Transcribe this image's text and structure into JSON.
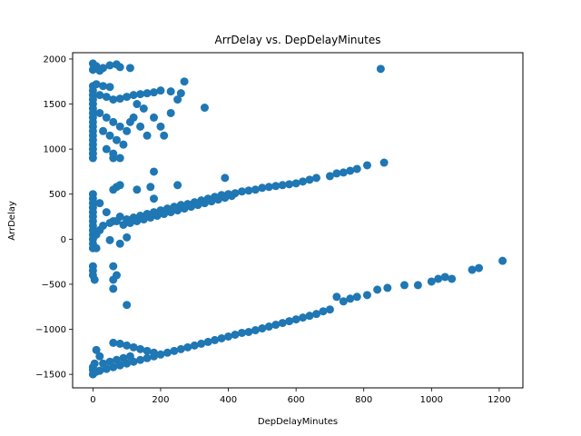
{
  "chart_data": {
    "type": "scatter",
    "title": "ArrDelay vs. DepDelayMinutes",
    "xlabel": "DepDelayMinutes",
    "ylabel": "ArrDelay",
    "xlim": [
      -60,
      1270
    ],
    "ylim": [
      -1650,
      2070
    ],
    "xticks": [
      0,
      200,
      400,
      600,
      800,
      1000,
      1200
    ],
    "yticks": [
      -1500,
      -1000,
      -500,
      0,
      500,
      1000,
      1500,
      2000
    ],
    "xtick_labels": [
      "0",
      "200",
      "400",
      "600",
      "800",
      "1000",
      "1200"
    ],
    "ytick_labels": [
      "−1500",
      "−1000",
      "−500",
      "0",
      "500",
      "1000",
      "1500",
      "2000"
    ],
    "grid": false,
    "marker_color": "#1f77b4",
    "series": [
      {
        "points": [
          [
            0,
            1950
          ],
          [
            10,
            1920
          ],
          [
            30,
            1900
          ],
          [
            50,
            1930
          ],
          [
            70,
            1940
          ],
          [
            80,
            1910
          ],
          [
            110,
            1900
          ],
          [
            0,
            1880
          ],
          [
            20,
            1870
          ],
          [
            0,
            1700
          ],
          [
            10,
            1720
          ],
          [
            30,
            1700
          ],
          [
            50,
            1690
          ],
          [
            0,
            1650
          ],
          [
            0,
            1600
          ],
          [
            0,
            1550
          ],
          [
            0,
            1500
          ],
          [
            0,
            1450
          ],
          [
            0,
            1400
          ],
          [
            0,
            1350
          ],
          [
            0,
            1300
          ],
          [
            0,
            1250
          ],
          [
            0,
            1200
          ],
          [
            0,
            1150
          ],
          [
            0,
            1100
          ],
          [
            0,
            1050
          ],
          [
            0,
            1000
          ],
          [
            0,
            950
          ],
          [
            0,
            900
          ],
          [
            20,
            1600
          ],
          [
            40,
            1580
          ],
          [
            60,
            1550
          ],
          [
            80,
            1560
          ],
          [
            100,
            1580
          ],
          [
            120,
            1600
          ],
          [
            140,
            1610
          ],
          [
            160,
            1620
          ],
          [
            180,
            1630
          ],
          [
            200,
            1650
          ],
          [
            230,
            1640
          ],
          [
            260,
            1620
          ],
          [
            270,
            1750
          ],
          [
            20,
            1400
          ],
          [
            40,
            1350
          ],
          [
            60,
            1300
          ],
          [
            80,
            1250
          ],
          [
            30,
            1200
          ],
          [
            50,
            1150
          ],
          [
            70,
            1100
          ],
          [
            90,
            1050
          ],
          [
            40,
            1000
          ],
          [
            60,
            950
          ],
          [
            80,
            900
          ],
          [
            130,
            1500
          ],
          [
            150,
            1450
          ],
          [
            120,
            1350
          ],
          [
            140,
            1250
          ],
          [
            160,
            1150
          ],
          [
            180,
            1350
          ],
          [
            200,
            1250
          ],
          [
            230,
            1400
          ],
          [
            250,
            1550
          ],
          [
            210,
            1150
          ],
          [
            330,
            1460
          ],
          [
            850,
            1890
          ],
          [
            60,
            900
          ],
          [
            100,
            1200
          ],
          [
            110,
            1300
          ],
          [
            0,
            500
          ],
          [
            0,
            450
          ],
          [
            0,
            400
          ],
          [
            0,
            350
          ],
          [
            0,
            300
          ],
          [
            0,
            250
          ],
          [
            0,
            200
          ],
          [
            0,
            150
          ],
          [
            0,
            100
          ],
          [
            0,
            50
          ],
          [
            0,
            0
          ],
          [
            0,
            -50
          ],
          [
            0,
            -100
          ],
          [
            0,
            -300
          ],
          [
            0,
            -350
          ],
          [
            0,
            -400
          ],
          [
            5,
            -450
          ],
          [
            20,
            400
          ],
          [
            40,
            300
          ],
          [
            60,
            200
          ],
          [
            80,
            250
          ],
          [
            100,
            220
          ],
          [
            120,
            240
          ],
          [
            140,
            260
          ],
          [
            160,
            280
          ],
          [
            180,
            300
          ],
          [
            200,
            320
          ],
          [
            220,
            340
          ],
          [
            240,
            360
          ],
          [
            260,
            380
          ],
          [
            280,
            390
          ],
          [
            300,
            410
          ],
          [
            320,
            430
          ],
          [
            340,
            450
          ],
          [
            360,
            470
          ],
          [
            380,
            490
          ],
          [
            400,
            500
          ],
          [
            420,
            510
          ],
          [
            440,
            530
          ],
          [
            460,
            540
          ],
          [
            480,
            550
          ],
          [
            500,
            570
          ],
          [
            520,
            580
          ],
          [
            540,
            590
          ],
          [
            560,
            600
          ],
          [
            580,
            610
          ],
          [
            600,
            620
          ],
          [
            620,
            640
          ],
          [
            640,
            660
          ],
          [
            660,
            680
          ],
          [
            700,
            700
          ],
          [
            720,
            730
          ],
          [
            740,
            740
          ],
          [
            760,
            760
          ],
          [
            780,
            780
          ],
          [
            810,
            820
          ],
          [
            860,
            850
          ],
          [
            30,
            150
          ],
          [
            50,
            180
          ],
          [
            70,
            200
          ],
          [
            90,
            160
          ],
          [
            110,
            180
          ],
          [
            130,
            200
          ],
          [
            150,
            220
          ],
          [
            170,
            240
          ],
          [
            190,
            260
          ],
          [
            210,
            280
          ],
          [
            230,
            300
          ],
          [
            250,
            320
          ],
          [
            270,
            340
          ],
          [
            290,
            360
          ],
          [
            310,
            380
          ],
          [
            330,
            400
          ],
          [
            350,
            420
          ],
          [
            370,
            440
          ],
          [
            390,
            460
          ],
          [
            410,
            480
          ],
          [
            60,
            550
          ],
          [
            70,
            580
          ],
          [
            80,
            600
          ],
          [
            130,
            550
          ],
          [
            170,
            580
          ],
          [
            180,
            750
          ],
          [
            250,
            600
          ],
          [
            180,
            450
          ],
          [
            390,
            680
          ],
          [
            100,
            20
          ],
          [
            50,
            -10
          ],
          [
            80,
            -50
          ],
          [
            60,
            -300
          ],
          [
            70,
            -400
          ],
          [
            60,
            -450
          ],
          [
            60,
            -550
          ],
          [
            100,
            -730
          ],
          [
            10,
            -100
          ],
          [
            20,
            100
          ],
          [
            10,
            50
          ],
          [
            0,
            -1500
          ],
          [
            0,
            -1450
          ],
          [
            0,
            -1420
          ],
          [
            5,
            -1380
          ],
          [
            10,
            -1470
          ],
          [
            20,
            -1460
          ],
          [
            40,
            -1440
          ],
          [
            60,
            -1420
          ],
          [
            80,
            -1400
          ],
          [
            100,
            -1380
          ],
          [
            120,
            -1360
          ],
          [
            140,
            -1340
          ],
          [
            160,
            -1320
          ],
          [
            180,
            -1300
          ],
          [
            200,
            -1280
          ],
          [
            220,
            -1260
          ],
          [
            240,
            -1240
          ],
          [
            260,
            -1220
          ],
          [
            280,
            -1200
          ],
          [
            300,
            -1180
          ],
          [
            320,
            -1160
          ],
          [
            340,
            -1140
          ],
          [
            360,
            -1120
          ],
          [
            380,
            -1100
          ],
          [
            400,
            -1080
          ],
          [
            420,
            -1060
          ],
          [
            440,
            -1040
          ],
          [
            460,
            -1030
          ],
          [
            480,
            -1010
          ],
          [
            500,
            -990
          ],
          [
            520,
            -970
          ],
          [
            540,
            -950
          ],
          [
            560,
            -930
          ],
          [
            580,
            -910
          ],
          [
            600,
            -890
          ],
          [
            620,
            -870
          ],
          [
            640,
            -850
          ],
          [
            660,
            -830
          ],
          [
            680,
            -800
          ],
          [
            700,
            -780
          ],
          [
            720,
            -640
          ],
          [
            740,
            -690
          ],
          [
            760,
            -660
          ],
          [
            780,
            -640
          ],
          [
            810,
            -620
          ],
          [
            840,
            -560
          ],
          [
            870,
            -540
          ],
          [
            920,
            -510
          ],
          [
            960,
            -510
          ],
          [
            1000,
            -470
          ],
          [
            1020,
            -440
          ],
          [
            1040,
            -420
          ],
          [
            1060,
            -440
          ],
          [
            1120,
            -340
          ],
          [
            1140,
            -320
          ],
          [
            1210,
            -240
          ],
          [
            30,
            -1380
          ],
          [
            50,
            -1360
          ],
          [
            70,
            -1340
          ],
          [
            90,
            -1320
          ],
          [
            110,
            -1300
          ],
          [
            10,
            -1230
          ],
          [
            20,
            -1300
          ],
          [
            60,
            -1150
          ],
          [
            80,
            -1160
          ],
          [
            100,
            -1180
          ],
          [
            120,
            -1200
          ],
          [
            140,
            -1220
          ],
          [
            160,
            -1240
          ],
          [
            180,
            -1260
          ]
        ]
      }
    ]
  }
}
